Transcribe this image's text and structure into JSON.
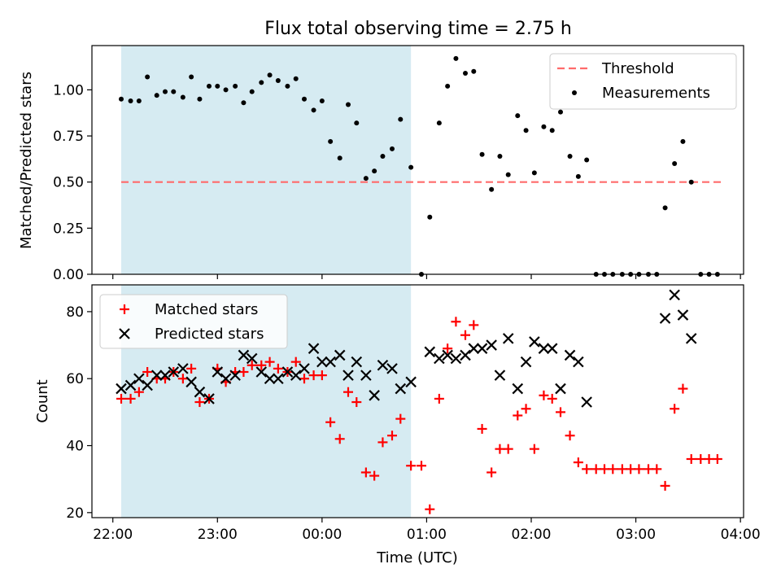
{
  "figure_title": "Flux total observing time = 2.75 h",
  "chart_data": [
    {
      "type": "scatter",
      "ylabel": "Matched/Predicted stars",
      "xlim": [
        -0.2,
        6.03
      ],
      "ylim": [
        0,
        1.24
      ],
      "yticks": [
        0.0,
        0.25,
        0.5,
        0.75,
        1.0
      ],
      "ytick_labels": [
        "0.00",
        "0.25",
        "0.50",
        "0.75",
        "1.00"
      ],
      "xticks": [
        0,
        1,
        2,
        3,
        4,
        5,
        6
      ],
      "shaded_span": {
        "x": [
          0.08,
          2.85
        ],
        "color": "#add8e6"
      },
      "legend": {
        "location": "upper right",
        "entries": [
          "Threshold",
          "Measurements"
        ]
      },
      "threshold": {
        "name": "Threshold",
        "x": [
          0.08,
          5.83
        ],
        "y": 0.5,
        "color": "#ff6b6b"
      },
      "series": [
        {
          "name": "Measurements",
          "marker": "dot",
          "color": "#000000",
          "x": [
            0.08,
            0.17,
            0.25,
            0.33,
            0.42,
            0.5,
            0.58,
            0.67,
            0.75,
            0.83,
            0.92,
            1.0,
            1.08,
            1.17,
            1.25,
            1.33,
            1.42,
            1.5,
            1.58,
            1.67,
            1.75,
            1.83,
            1.92,
            2.0,
            2.08,
            2.17,
            2.25,
            2.33,
            2.42,
            2.5,
            2.58,
            2.67,
            2.75,
            2.85,
            2.95,
            3.03,
            3.12,
            3.2,
            3.28,
            3.37,
            3.45,
            3.53,
            3.62,
            3.7,
            3.78,
            3.87,
            3.95,
            4.03,
            4.12,
            4.2,
            4.28,
            4.37,
            4.45,
            4.53,
            4.62,
            4.7,
            4.78,
            4.87,
            4.95,
            5.03,
            5.12,
            5.2,
            5.28,
            5.37,
            5.45,
            5.53,
            5.62,
            5.7,
            5.78
          ],
          "y": [
            0.95,
            0.94,
            0.94,
            1.07,
            0.97,
            0.99,
            0.99,
            0.96,
            1.07,
            0.95,
            1.02,
            1.02,
            1.0,
            1.02,
            0.93,
            0.99,
            1.04,
            1.08,
            1.05,
            1.02,
            1.06,
            0.95,
            0.89,
            0.94,
            0.72,
            0.63,
            0.92,
            0.82,
            0.52,
            0.56,
            0.64,
            0.68,
            0.84,
            0.58,
            0.0,
            0.31,
            0.82,
            1.02,
            1.17,
            1.09,
            1.1,
            0.65,
            0.46,
            0.64,
            0.54,
            0.86,
            0.78,
            0.55,
            0.8,
            0.78,
            0.88,
            0.64,
            0.53,
            0.62,
            0.0,
            0.0,
            0.0,
            0.0,
            0.0,
            0.0,
            0.0,
            0.0,
            0.36,
            0.6,
            0.72,
            0.5,
            0.0,
            0.0,
            0.0
          ]
        }
      ]
    },
    {
      "type": "scatter",
      "xlabel": "Time (UTC)",
      "ylabel": "Count",
      "xlim": [
        -0.2,
        6.03
      ],
      "ylim": [
        18.5,
        88
      ],
      "yticks": [
        20,
        40,
        60,
        80
      ],
      "ytick_labels": [
        "20",
        "40",
        "60",
        "80"
      ],
      "xticks": [
        0,
        1,
        2,
        3,
        4,
        5,
        6
      ],
      "xtick_labels": [
        "22:00",
        "23:00",
        "00:00",
        "01:00",
        "02:00",
        "03:00",
        "04:00"
      ],
      "shaded_span": {
        "x": [
          0.08,
          2.85
        ],
        "color": "#add8e6"
      },
      "legend": {
        "location": "upper left",
        "entries": [
          "Matched stars",
          "Predicted stars"
        ]
      },
      "series": [
        {
          "name": "Matched stars",
          "marker": "plus",
          "color": "#ff0000",
          "x": [
            0.08,
            0.17,
            0.25,
            0.33,
            0.42,
            0.5,
            0.58,
            0.67,
            0.75,
            0.83,
            0.92,
            1.0,
            1.08,
            1.17,
            1.25,
            1.33,
            1.42,
            1.5,
            1.58,
            1.67,
            1.75,
            1.83,
            1.92,
            2.0,
            2.08,
            2.17,
            2.25,
            2.33,
            2.42,
            2.5,
            2.58,
            2.67,
            2.75,
            2.85,
            2.95,
            3.03,
            3.12,
            3.2,
            3.28,
            3.37,
            3.45,
            3.53,
            3.62,
            3.7,
            3.78,
            3.87,
            3.95,
            4.03,
            4.12,
            4.2,
            4.28,
            4.37,
            4.45,
            4.53,
            4.62,
            4.7,
            4.78,
            4.87,
            4.95,
            5.03,
            5.12,
            5.2,
            5.28,
            5.37,
            5.45,
            5.53,
            5.62,
            5.7,
            5.78
          ],
          "y": [
            54,
            54,
            56,
            62,
            60,
            60,
            62,
            60,
            63,
            53,
            54,
            63,
            59,
            62,
            62,
            64,
            64,
            65,
            63,
            62,
            65,
            60,
            61,
            61,
            47,
            42,
            56,
            53,
            32,
            31,
            41,
            43,
            48,
            34,
            34,
            21,
            54,
            69,
            77,
            73,
            76,
            45,
            32,
            39,
            39,
            49,
            51,
            39,
            55,
            54,
            50,
            43,
            35,
            33,
            33,
            33,
            33,
            33,
            33,
            33,
            33,
            33,
            28,
            51,
            57,
            36,
            36,
            36,
            36
          ]
        },
        {
          "name": "Predicted stars",
          "marker": "x",
          "color": "#000000",
          "x": [
            0.08,
            0.17,
            0.25,
            0.33,
            0.42,
            0.5,
            0.58,
            0.67,
            0.75,
            0.83,
            0.92,
            1.0,
            1.08,
            1.17,
            1.25,
            1.33,
            1.42,
            1.5,
            1.58,
            1.67,
            1.75,
            1.83,
            1.92,
            2.0,
            2.08,
            2.17,
            2.25,
            2.33,
            2.42,
            2.5,
            2.58,
            2.67,
            2.75,
            2.85,
            3.03,
            3.12,
            3.2,
            3.28,
            3.37,
            3.45,
            3.53,
            3.62,
            3.7,
            3.78,
            3.87,
            3.95,
            4.03,
            4.12,
            4.2,
            4.28,
            4.37,
            4.45,
            4.53,
            5.28,
            5.37,
            5.45,
            5.53
          ],
          "y": [
            57,
            58,
            60,
            58,
            61,
            61,
            62,
            63,
            59,
            56,
            54,
            62,
            60,
            61,
            67,
            66,
            62,
            60,
            60,
            62,
            61,
            63,
            69,
            65,
            65,
            67,
            61,
            65,
            61,
            55,
            64,
            63,
            57,
            59,
            68,
            66,
            67,
            66,
            67,
            69,
            69,
            70,
            61,
            72,
            57,
            65,
            71,
            69,
            69,
            57,
            67,
            65,
            53,
            78,
            85,
            79,
            72
          ]
        }
      ]
    }
  ]
}
